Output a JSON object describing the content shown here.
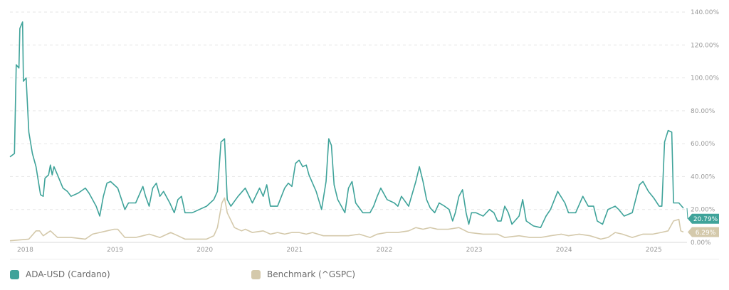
{
  "chart_data": {
    "type": "line",
    "title": "",
    "xlabel": "",
    "ylabel": "",
    "x_ticks": [
      "2018",
      "2019",
      "2020",
      "2021",
      "2022",
      "2023",
      "2024",
      "2025"
    ],
    "y_ticks": [
      "0.00%",
      "20.00%",
      "40.00%",
      "60.00%",
      "80.00%",
      "100.00%",
      "120.00%",
      "140.00%"
    ],
    "xlim": [
      2017.83,
      2025.37
    ],
    "ylim": [
      0,
      140
    ],
    "grid": true,
    "legend_position": "bottom",
    "series": [
      {
        "name": "ADA-USD (Cardano)",
        "color": "#3fa39a",
        "end_label": "20.79%",
        "points": [
          [
            2017.83,
            52
          ],
          [
            2017.88,
            54
          ],
          [
            2017.9,
            108
          ],
          [
            2017.93,
            106
          ],
          [
            2017.94,
            130
          ],
          [
            2017.97,
            134
          ],
          [
            2017.98,
            98
          ],
          [
            2018.01,
            100
          ],
          [
            2018.04,
            67
          ],
          [
            2018.08,
            54
          ],
          [
            2018.12,
            46
          ],
          [
            2018.17,
            29
          ],
          [
            2018.2,
            28
          ],
          [
            2018.22,
            39
          ],
          [
            2018.26,
            41
          ],
          [
            2018.28,
            47
          ],
          [
            2018.3,
            41
          ],
          [
            2018.32,
            46
          ],
          [
            2018.36,
            41
          ],
          [
            2018.42,
            33
          ],
          [
            2018.47,
            31
          ],
          [
            2018.51,
            28
          ],
          [
            2018.59,
            30
          ],
          [
            2018.67,
            33
          ],
          [
            2018.71,
            30
          ],
          [
            2018.79,
            22
          ],
          [
            2018.83,
            16
          ],
          [
            2018.87,
            28
          ],
          [
            2018.91,
            36
          ],
          [
            2018.95,
            37
          ],
          [
            2019.03,
            33
          ],
          [
            2019.11,
            20
          ],
          [
            2019.15,
            24
          ],
          [
            2019.23,
            24
          ],
          [
            2019.31,
            34
          ],
          [
            2019.34,
            28
          ],
          [
            2019.38,
            22
          ],
          [
            2019.42,
            33
          ],
          [
            2019.46,
            36
          ],
          [
            2019.5,
            28
          ],
          [
            2019.54,
            31
          ],
          [
            2019.61,
            24
          ],
          [
            2019.66,
            18
          ],
          [
            2019.7,
            26
          ],
          [
            2019.74,
            28
          ],
          [
            2019.78,
            18
          ],
          [
            2019.86,
            18
          ],
          [
            2019.94,
            20
          ],
          [
            2020.02,
            22
          ],
          [
            2020.1,
            26
          ],
          [
            2020.14,
            31
          ],
          [
            2020.18,
            61
          ],
          [
            2020.22,
            63
          ],
          [
            2020.25,
            26
          ],
          [
            2020.29,
            22
          ],
          [
            2020.37,
            28
          ],
          [
            2020.45,
            33
          ],
          [
            2020.53,
            24
          ],
          [
            2020.61,
            33
          ],
          [
            2020.65,
            28
          ],
          [
            2020.69,
            35
          ],
          [
            2020.73,
            22
          ],
          [
            2020.81,
            22
          ],
          [
            2020.89,
            33
          ],
          [
            2020.93,
            36
          ],
          [
            2020.97,
            34
          ],
          [
            2021.01,
            48
          ],
          [
            2021.05,
            50
          ],
          [
            2021.09,
            46
          ],
          [
            2021.13,
            47
          ],
          [
            2021.16,
            41
          ],
          [
            2021.24,
            31
          ],
          [
            2021.3,
            20
          ],
          [
            2021.35,
            37
          ],
          [
            2021.38,
            63
          ],
          [
            2021.41,
            59
          ],
          [
            2021.44,
            35
          ],
          [
            2021.48,
            26
          ],
          [
            2021.56,
            18
          ],
          [
            2021.6,
            33
          ],
          [
            2021.64,
            37
          ],
          [
            2021.68,
            24
          ],
          [
            2021.76,
            18
          ],
          [
            2021.84,
            18
          ],
          [
            2021.88,
            22
          ],
          [
            2021.92,
            28
          ],
          [
            2021.96,
            33
          ],
          [
            2022.03,
            26
          ],
          [
            2022.11,
            24
          ],
          [
            2022.15,
            22
          ],
          [
            2022.19,
            28
          ],
          [
            2022.27,
            22
          ],
          [
            2022.35,
            37
          ],
          [
            2022.39,
            46
          ],
          [
            2022.43,
            37
          ],
          [
            2022.47,
            26
          ],
          [
            2022.51,
            21
          ],
          [
            2022.56,
            18
          ],
          [
            2022.61,
            24
          ],
          [
            2022.67,
            22
          ],
          [
            2022.72,
            20
          ],
          [
            2022.76,
            13
          ],
          [
            2022.79,
            18
          ],
          [
            2022.83,
            28
          ],
          [
            2022.87,
            32
          ],
          [
            2022.91,
            18
          ],
          [
            2022.94,
            11
          ],
          [
            2022.97,
            18
          ],
          [
            2023.02,
            18
          ],
          [
            2023.1,
            16
          ],
          [
            2023.17,
            20
          ],
          [
            2023.22,
            18
          ],
          [
            2023.26,
            13
          ],
          [
            2023.3,
            13
          ],
          [
            2023.34,
            22
          ],
          [
            2023.38,
            18
          ],
          [
            2023.42,
            11
          ],
          [
            2023.5,
            16
          ],
          [
            2023.54,
            26
          ],
          [
            2023.58,
            13
          ],
          [
            2023.66,
            10
          ],
          [
            2023.74,
            9
          ],
          [
            2023.8,
            16
          ],
          [
            2023.85,
            20
          ],
          [
            2023.93,
            31
          ],
          [
            2024.01,
            24
          ],
          [
            2024.05,
            18
          ],
          [
            2024.13,
            18
          ],
          [
            2024.21,
            28
          ],
          [
            2024.27,
            22
          ],
          [
            2024.33,
            22
          ],
          [
            2024.37,
            13
          ],
          [
            2024.43,
            11
          ],
          [
            2024.49,
            20
          ],
          [
            2024.57,
            22
          ],
          [
            2024.61,
            20
          ],
          [
            2024.67,
            16
          ],
          [
            2024.76,
            18
          ],
          [
            2024.84,
            35
          ],
          [
            2024.88,
            37
          ],
          [
            2024.94,
            31
          ],
          [
            2025.0,
            27
          ],
          [
            2025.06,
            22
          ],
          [
            2025.09,
            22
          ],
          [
            2025.12,
            61
          ],
          [
            2025.16,
            68
          ],
          [
            2025.2,
            67
          ],
          [
            2025.22,
            24
          ],
          [
            2025.28,
            24
          ],
          [
            2025.33,
            20.79
          ]
        ]
      },
      {
        "name": "Benchmark (^GSPC)",
        "color": "#d4c9ab",
        "end_label": "6.29%",
        "points": [
          [
            2017.83,
            1
          ],
          [
            2018.04,
            2
          ],
          [
            2018.12,
            7
          ],
          [
            2018.16,
            7
          ],
          [
            2018.2,
            4
          ],
          [
            2018.28,
            7
          ],
          [
            2018.36,
            3
          ],
          [
            2018.51,
            3
          ],
          [
            2018.67,
            2
          ],
          [
            2018.75,
            5
          ],
          [
            2018.83,
            6
          ],
          [
            2018.91,
            7
          ],
          [
            2018.99,
            8
          ],
          [
            2019.03,
            8
          ],
          [
            2019.11,
            3
          ],
          [
            2019.23,
            3
          ],
          [
            2019.31,
            4
          ],
          [
            2019.38,
            5
          ],
          [
            2019.5,
            3
          ],
          [
            2019.62,
            6
          ],
          [
            2019.7,
            4
          ],
          [
            2019.78,
            2
          ],
          [
            2020.02,
            2
          ],
          [
            2020.1,
            4
          ],
          [
            2020.14,
            9
          ],
          [
            2020.19,
            24
          ],
          [
            2020.22,
            27
          ],
          [
            2020.25,
            18
          ],
          [
            2020.33,
            9
          ],
          [
            2020.41,
            7
          ],
          [
            2020.45,
            8
          ],
          [
            2020.53,
            6
          ],
          [
            2020.65,
            7
          ],
          [
            2020.73,
            5
          ],
          [
            2020.81,
            6
          ],
          [
            2020.89,
            5
          ],
          [
            2020.97,
            6
          ],
          [
            2021.05,
            6
          ],
          [
            2021.13,
            5
          ],
          [
            2021.2,
            6
          ],
          [
            2021.32,
            4
          ],
          [
            2021.44,
            4
          ],
          [
            2021.6,
            4
          ],
          [
            2021.72,
            5
          ],
          [
            2021.84,
            3
          ],
          [
            2021.92,
            5
          ],
          [
            2022.03,
            6
          ],
          [
            2022.15,
            6
          ],
          [
            2022.27,
            7
          ],
          [
            2022.35,
            9
          ],
          [
            2022.43,
            8
          ],
          [
            2022.51,
            9
          ],
          [
            2022.59,
            8
          ],
          [
            2022.71,
            8
          ],
          [
            2022.83,
            9
          ],
          [
            2022.94,
            6
          ],
          [
            2023.1,
            5
          ],
          [
            2023.26,
            5
          ],
          [
            2023.34,
            3
          ],
          [
            2023.5,
            4
          ],
          [
            2023.62,
            3
          ],
          [
            2023.74,
            3
          ],
          [
            2023.85,
            4
          ],
          [
            2023.97,
            5
          ],
          [
            2024.05,
            4
          ],
          [
            2024.17,
            5
          ],
          [
            2024.29,
            4
          ],
          [
            2024.41,
            2
          ],
          [
            2024.49,
            3
          ],
          [
            2024.57,
            6
          ],
          [
            2024.65,
            5
          ],
          [
            2024.76,
            3
          ],
          [
            2024.88,
            5
          ],
          [
            2024.99,
            5
          ],
          [
            2025.08,
            6
          ],
          [
            2025.16,
            7
          ],
          [
            2025.22,
            13
          ],
          [
            2025.28,
            14
          ],
          [
            2025.3,
            7
          ],
          [
            2025.33,
            6.29
          ]
        ]
      }
    ]
  }
}
